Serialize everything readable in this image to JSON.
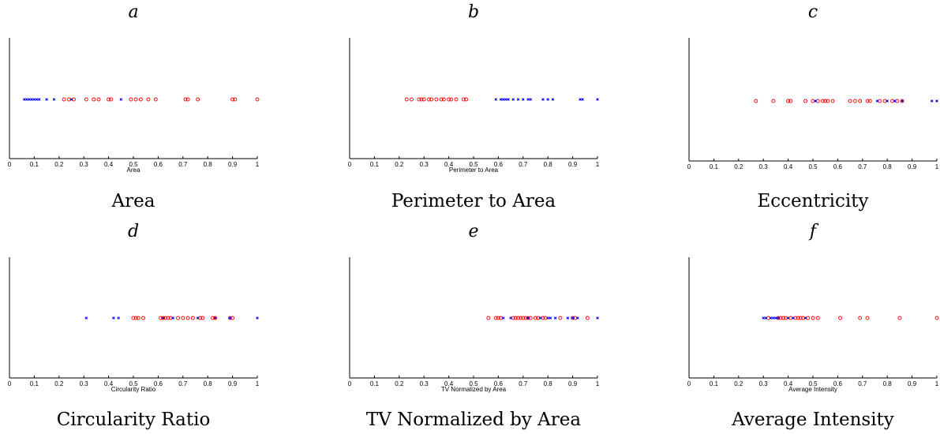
{
  "colors": {
    "class_circle": "#ff0000",
    "class_cross": "#0000ff",
    "axis": "#000000"
  },
  "chart_data": [
    {
      "type": "scatter",
      "letter": "a",
      "caption": "Area",
      "xlabel": "Area",
      "xlim": [
        0,
        1
      ],
      "xticks": [
        "0",
        "0.1",
        "0.2",
        "0.3",
        "0.4",
        "0.5",
        "0.6",
        "0.7",
        "0.8",
        "0.9",
        "1"
      ],
      "series": [
        {
          "marker": "circle",
          "color": "#ff0000",
          "x": [
            0.22,
            0.24,
            0.26,
            0.31,
            0.34,
            0.36,
            0.4,
            0.41,
            0.49,
            0.51,
            0.53,
            0.56,
            0.59,
            0.71,
            0.72,
            0.76,
            0.9,
            0.91,
            1.0
          ]
        },
        {
          "marker": "cross",
          "color": "#0000ff",
          "x": [
            0.06,
            0.07,
            0.08,
            0.09,
            0.1,
            0.11,
            0.12,
            0.15,
            0.18,
            0.25,
            0.45
          ]
        }
      ]
    },
    {
      "type": "scatter",
      "letter": "b",
      "caption": "Perimeter to Area",
      "xlabel": "Perimeter to Area",
      "xlim": [
        0,
        1
      ],
      "xticks": [
        "0",
        "0.1",
        "0.2",
        "0.3",
        "0.4",
        "0.5",
        "0.6",
        "0.7",
        "0.8",
        "0.9",
        "1"
      ],
      "series": [
        {
          "marker": "circle",
          "color": "#ff0000",
          "x": [
            0.23,
            0.25,
            0.28,
            0.29,
            0.3,
            0.32,
            0.33,
            0.35,
            0.37,
            0.38,
            0.4,
            0.41,
            0.43,
            0.46,
            0.47
          ]
        },
        {
          "marker": "cross",
          "color": "#0000ff",
          "x": [
            0.59,
            0.61,
            0.62,
            0.63,
            0.64,
            0.66,
            0.68,
            0.7,
            0.72,
            0.73,
            0.78,
            0.8,
            0.82,
            0.93,
            0.94,
            1.0
          ]
        }
      ]
    },
    {
      "type": "scatter",
      "letter": "c",
      "caption": "Eccentricity",
      "xlabel": "",
      "xlim": [
        0,
        1
      ],
      "xticks": [
        "0",
        "0.1",
        "0.2",
        "0.3",
        "0.4",
        "0.5",
        "0.6",
        "0.7",
        "0.8",
        "0.9",
        "1"
      ],
      "series": [
        {
          "marker": "circle",
          "color": "#ff0000",
          "x": [
            0.27,
            0.34,
            0.4,
            0.41,
            0.47,
            0.5,
            0.52,
            0.54,
            0.55,
            0.56,
            0.58,
            0.65,
            0.67,
            0.69,
            0.72,
            0.73,
            0.77,
            0.79,
            0.82,
            0.84,
            0.86
          ]
        },
        {
          "marker": "cross",
          "color": "#0000ff",
          "x": [
            0.51,
            0.76,
            0.8,
            0.83,
            0.86,
            0.98,
            1.0
          ]
        }
      ]
    },
    {
      "type": "scatter",
      "letter": "d",
      "caption": "Circularity Ratio",
      "xlabel": "Circularity Ratio",
      "xlim": [
        0,
        1
      ],
      "xticks": [
        "0",
        "0.1",
        "0.2",
        "0.3",
        "0.4",
        "0.5",
        "0.6",
        "0.7",
        "0.8",
        "0.9",
        "1"
      ],
      "series": [
        {
          "marker": "circle",
          "color": "#ff0000",
          "x": [
            0.5,
            0.51,
            0.52,
            0.54,
            0.61,
            0.62,
            0.63,
            0.64,
            0.65,
            0.68,
            0.7,
            0.72,
            0.74,
            0.77,
            0.78,
            0.82,
            0.83,
            0.89,
            0.9
          ]
        },
        {
          "marker": "cross",
          "color": "#0000ff",
          "x": [
            0.31,
            0.42,
            0.44,
            0.62,
            0.66,
            0.76,
            0.83,
            0.89,
            1.0
          ]
        }
      ]
    },
    {
      "type": "scatter",
      "letter": "e",
      "caption": "TV Normalized by Area",
      "xlabel": "TV Normalized by Area",
      "xlim": [
        0,
        1
      ],
      "xticks": [
        "0",
        "0.1",
        "0.2",
        "0.3",
        "0.4",
        "0.5",
        "0.6",
        "0.7",
        "0.8",
        "0.9",
        "1"
      ],
      "series": [
        {
          "marker": "circle",
          "color": "#ff0000",
          "x": [
            0.56,
            0.59,
            0.6,
            0.61,
            0.66,
            0.67,
            0.68,
            0.69,
            0.7,
            0.71,
            0.72,
            0.73,
            0.75,
            0.76,
            0.78,
            0.79,
            0.85,
            0.9,
            0.91,
            0.96
          ]
        },
        {
          "marker": "cross",
          "color": "#0000ff",
          "x": [
            0.62,
            0.65,
            0.72,
            0.77,
            0.8,
            0.81,
            0.83,
            0.88,
            0.9,
            0.92,
            1.0
          ]
        }
      ]
    },
    {
      "type": "scatter",
      "letter": "f",
      "caption": "Average Intensity",
      "xlabel": "Average Intensity",
      "xlim": [
        0,
        1
      ],
      "xticks": [
        "0",
        "0.1",
        "0.2",
        "0.3",
        "0.4",
        "0.5",
        "0.6",
        "0.7",
        "0.8",
        "0.9",
        "1"
      ],
      "series": [
        {
          "marker": "circle",
          "color": "#ff0000",
          "x": [
            0.32,
            0.36,
            0.37,
            0.38,
            0.39,
            0.41,
            0.43,
            0.44,
            0.45,
            0.46,
            0.48,
            0.5,
            0.52,
            0.61,
            0.69,
            0.72,
            0.85,
            1.0
          ]
        },
        {
          "marker": "cross",
          "color": "#0000ff",
          "x": [
            0.3,
            0.31,
            0.33,
            0.34,
            0.35,
            0.36,
            0.4,
            0.42,
            0.47
          ]
        }
      ]
    }
  ]
}
